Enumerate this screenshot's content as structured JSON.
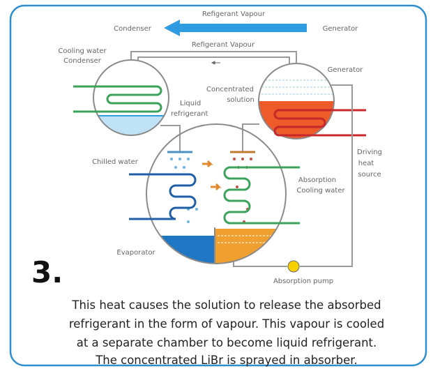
{
  "top_arrow": {
    "label": "Refigerant Vapour",
    "left": "Condenser",
    "right": "Generator"
  },
  "pipe_label": "Refigerant Vapour",
  "condenser_label": [
    "Cooling water",
    "Condenser"
  ],
  "generator_label": "Generator",
  "concentrated_label": [
    "Concentrated",
    "solution"
  ],
  "liquid_label": [
    "Liquid",
    "refrigerant"
  ],
  "chilled_label": "Chilled water",
  "driving_label": [
    "Driving",
    "heat",
    "source"
  ],
  "absorption_label": [
    "Absorption",
    "Cooling water"
  ],
  "evaporator_label": "Evaporator",
  "pump_label": "Absorption pump",
  "step": "3.",
  "caption": [
    "This heat causes the solution to release the absorbed",
    "refrigerant in the form of vapour. This vapour is cooled",
    "at a separate chamber to become liquid refrigerant.",
    "The concentrated LiBr is sprayed in absorber."
  ]
}
